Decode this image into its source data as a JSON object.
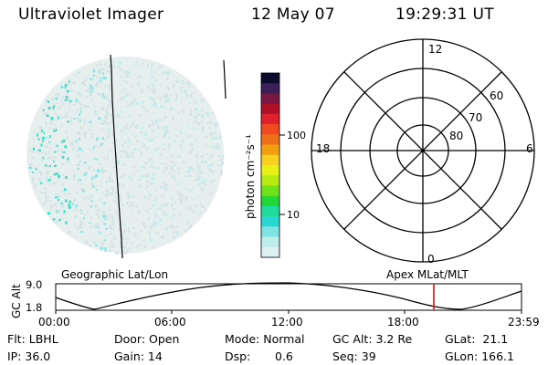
{
  "header": {
    "instrument": "Ultraviolet Imager",
    "date": "12 May 07",
    "time": "19:29:31 UT"
  },
  "colorbar": {
    "unit_label": "photon cm⁻²s⁻¹",
    "ticks": [
      "100",
      "10"
    ],
    "colors": [
      "#0b0b2e",
      "#3c1e5a",
      "#7a1642",
      "#b01026",
      "#e0202a",
      "#f04a20",
      "#f0701a",
      "#f2a010",
      "#f7d021",
      "#e9f015",
      "#b6ea10",
      "#6fe21a",
      "#22d836",
      "#1fdc9c",
      "#26d7d2",
      "#7fe3e4",
      "#bdeded",
      "#dff0f0"
    ]
  },
  "polar_grid": {
    "hour_labels": [
      "12",
      "18",
      "6",
      "0"
    ],
    "lat_labels": [
      "60",
      "70",
      "80"
    ]
  },
  "timeline": {
    "left_label": "Geographic Lat/Lon",
    "right_label": "Apex MLat/MLT",
    "axis_label": "GC Alt",
    "y_ticks": [
      "9.0",
      "1.8"
    ],
    "x_ticks": [
      "00:00",
      "06:00",
      "12:00",
      "18:00",
      "23:59"
    ],
    "marker_color": "#e0101a"
  },
  "status": {
    "flt": "Flt: LBHL",
    "ip": "IP: 36.0",
    "door": "Door: Open",
    "gain": "Gain: 14",
    "mode": "Mode: Normal",
    "dsp_label": "Dsp:",
    "dsp_value": "0.6",
    "gc_alt": "GC Alt: 3.2 Re",
    "seq": "Seq: 39",
    "glat": "GLat:  21.1",
    "glon": "GLon: 166.1"
  }
}
